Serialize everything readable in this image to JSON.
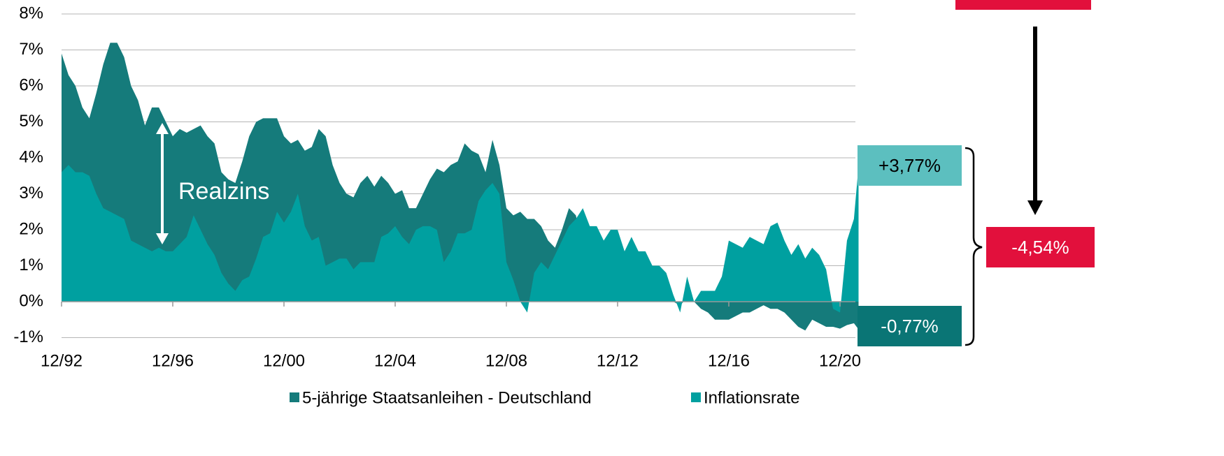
{
  "chart_data": {
    "type": "area",
    "x": [
      "12/92",
      "03/93",
      "06/93",
      "09/93",
      "12/93",
      "03/94",
      "06/94",
      "09/94",
      "12/94",
      "03/95",
      "06/95",
      "09/95",
      "12/95",
      "03/96",
      "06/96",
      "09/96",
      "12/96",
      "03/97",
      "06/97",
      "09/97",
      "12/97",
      "03/98",
      "06/98",
      "09/98",
      "12/98",
      "03/99",
      "06/99",
      "09/99",
      "12/99",
      "03/00",
      "06/00",
      "09/00",
      "12/00",
      "03/01",
      "06/01",
      "09/01",
      "12/01",
      "03/02",
      "06/02",
      "09/02",
      "12/02",
      "03/03",
      "06/03",
      "09/03",
      "12/03",
      "03/04",
      "06/04",
      "09/04",
      "12/04",
      "03/05",
      "06/05",
      "09/05",
      "12/05",
      "03/06",
      "06/06",
      "09/06",
      "12/06",
      "03/07",
      "06/07",
      "09/07",
      "12/07",
      "03/08",
      "06/08",
      "09/08",
      "12/08",
      "03/09",
      "06/09",
      "09/09",
      "12/09",
      "03/10",
      "06/10",
      "09/10",
      "12/10",
      "03/11",
      "06/11",
      "09/11",
      "12/11",
      "03/12",
      "06/12",
      "09/12",
      "12/12",
      "03/13",
      "06/13",
      "09/13",
      "12/13",
      "03/14",
      "06/14",
      "09/14",
      "12/14",
      "03/15",
      "06/15",
      "09/15",
      "12/15",
      "03/16",
      "06/16",
      "09/16",
      "12/16",
      "03/17",
      "06/17",
      "09/17",
      "12/17",
      "03/18",
      "06/18",
      "09/18",
      "12/18",
      "03/19",
      "06/19",
      "09/19",
      "12/19",
      "03/20",
      "06/20",
      "09/20",
      "12/20",
      "03/21",
      "06/21",
      "08/21"
    ],
    "series": [
      {
        "name": "5-jährige Staatsanleihen - Deutschland",
        "color": "#157b7b",
        "values": [
          6.9,
          6.3,
          6.0,
          5.4,
          5.1,
          5.8,
          6.6,
          7.2,
          7.2,
          6.8,
          6.0,
          5.6,
          4.9,
          5.4,
          5.4,
          5.0,
          4.6,
          4.8,
          4.7,
          4.8,
          4.9,
          4.6,
          4.4,
          3.6,
          3.4,
          3.3,
          3.9,
          4.6,
          5.0,
          5.1,
          5.1,
          5.1,
          4.6,
          4.4,
          4.5,
          4.2,
          4.3,
          4.8,
          4.6,
          3.8,
          3.3,
          3.0,
          2.9,
          3.3,
          3.5,
          3.2,
          3.5,
          3.3,
          3.0,
          3.1,
          2.6,
          2.6,
          3.0,
          3.4,
          3.7,
          3.6,
          3.8,
          3.9,
          4.4,
          4.2,
          4.1,
          3.6,
          4.5,
          3.8,
          2.6,
          2.4,
          2.5,
          2.3,
          2.3,
          2.1,
          1.7,
          1.5,
          2.0,
          2.6,
          2.4,
          1.5,
          1.0,
          0.9,
          0.6,
          0.5,
          0.3,
          0.4,
          0.6,
          0.9,
          0.9,
          0.7,
          0.5,
          0.3,
          0.0,
          -0.1,
          0.1,
          0.0,
          -0.2,
          -0.3,
          -0.5,
          -0.5,
          -0.5,
          -0.4,
          -0.3,
          -0.3,
          -0.2,
          -0.1,
          -0.2,
          -0.2,
          -0.3,
          -0.5,
          -0.7,
          -0.8,
          -0.5,
          -0.6,
          -0.7,
          -0.7,
          -0.75,
          -0.65,
          -0.6,
          -0.77
        ]
      },
      {
        "name": "Inflationsrate",
        "color": "#00a0a0",
        "values": [
          3.6,
          3.8,
          3.6,
          3.6,
          3.5,
          3.0,
          2.6,
          2.5,
          2.4,
          2.3,
          1.7,
          1.6,
          1.5,
          1.4,
          1.5,
          1.4,
          1.4,
          1.6,
          1.8,
          2.4,
          2.0,
          1.6,
          1.3,
          0.8,
          0.5,
          0.3,
          0.6,
          0.7,
          1.2,
          1.8,
          1.9,
          2.5,
          2.2,
          2.5,
          3.0,
          2.1,
          1.7,
          1.8,
          1.0,
          1.1,
          1.2,
          1.2,
          0.9,
          1.1,
          1.1,
          1.1,
          1.8,
          1.9,
          2.1,
          1.8,
          1.6,
          2.0,
          2.1,
          2.1,
          2.0,
          1.1,
          1.4,
          1.9,
          1.9,
          2.0,
          2.8,
          3.1,
          3.3,
          3.0,
          1.1,
          0.6,
          0.0,
          -0.3,
          0.8,
          1.1,
          0.9,
          1.3,
          1.7,
          2.1,
          2.3,
          2.6,
          2.1,
          2.1,
          1.7,
          2.0,
          2.0,
          1.4,
          1.8,
          1.4,
          1.4,
          1.0,
          1.0,
          0.8,
          0.2,
          -0.3,
          0.7,
          0.0,
          0.3,
          0.3,
          0.3,
          0.7,
          1.7,
          1.6,
          1.5,
          1.8,
          1.7,
          1.6,
          2.1,
          2.2,
          1.7,
          1.3,
          1.6,
          1.2,
          1.5,
          1.3,
          0.9,
          -0.2,
          -0.3,
          1.7,
          2.3,
          3.77
        ]
      }
    ],
    "xticks": [
      "12/92",
      "12/96",
      "12/00",
      "12/04",
      "12/08",
      "12/12",
      "12/16",
      "12/20"
    ],
    "ylim": [
      -1,
      8
    ],
    "yticks": [
      {
        "value": -1,
        "label": "-1%"
      },
      {
        "value": 0,
        "label": "0%"
      },
      {
        "value": 1,
        "label": "1%"
      },
      {
        "value": 2,
        "label": "2%"
      },
      {
        "value": 3,
        "label": "3%"
      },
      {
        "value": 4,
        "label": "4%"
      },
      {
        "value": 5,
        "label": "5%"
      },
      {
        "value": 6,
        "label": "6%"
      },
      {
        "value": 7,
        "label": "7%"
      },
      {
        "value": 8,
        "label": "8%"
      }
    ],
    "grid": true,
    "legend_position": "bottom",
    "annotations": [
      {
        "label": "Realzins"
      },
      {
        "label": "+3,77%",
        "value": 3.77,
        "color": "#5cbfbf"
      },
      {
        "label": "-0,77%",
        "value": -0.77,
        "color": "#0a7575"
      },
      {
        "label": "-4,54%",
        "value": -4.54,
        "color": "#e2103c"
      }
    ]
  }
}
